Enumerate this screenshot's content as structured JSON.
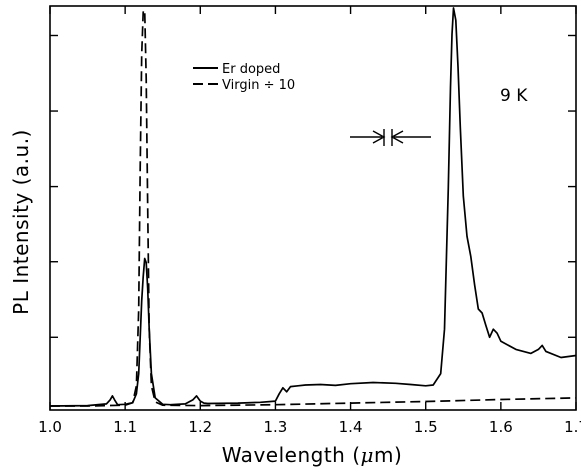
{
  "chart_data": {
    "type": "line",
    "title": "",
    "xlabel": "Wavelength (μm)",
    "xlabel_parts": {
      "main": "Wavelength (",
      "unit_greek": "μ",
      "unit_rest": "m)"
    },
    "ylabel": "PL Intensity (a.u.)",
    "xlim": [
      1.0,
      1.7
    ],
    "ylim": [
      0,
      1
    ],
    "y_tick_labels_shown": false,
    "y_ticks": [
      0.18,
      0.367,
      0.553,
      0.74,
      0.927
    ],
    "x_tick_labels": [
      "1.0",
      "1.1",
      "1.2",
      "1.3",
      "1.4",
      "1.5",
      "1.6",
      "1.7"
    ],
    "x_ticks": [
      1.0,
      1.1,
      1.2,
      1.3,
      1.4,
      1.5,
      1.6,
      1.7
    ],
    "grid": false,
    "legend_position": "top-center",
    "annotations": [
      {
        "text": "9 K",
        "x": 1.655,
        "y": 0.771
      },
      {
        "type": "resolution-arrows",
        "x": 1.45,
        "y": 0.737
      }
    ],
    "series": [
      {
        "name": "Er doped",
        "style": "solid",
        "x": [
          1.0,
          1.05,
          1.075,
          1.08,
          1.083,
          1.086,
          1.09,
          1.1,
          1.11,
          1.115,
          1.118,
          1.12,
          1.122,
          1.124,
          1.126,
          1.128,
          1.13,
          1.132,
          1.135,
          1.14,
          1.15,
          1.16,
          1.18,
          1.19,
          1.195,
          1.2,
          1.205,
          1.21,
          1.25,
          1.28,
          1.3,
          1.305,
          1.31,
          1.315,
          1.32,
          1.33,
          1.34,
          1.36,
          1.38,
          1.4,
          1.43,
          1.46,
          1.48,
          1.5,
          1.51,
          1.52,
          1.525,
          1.53,
          1.533,
          1.535,
          1.537,
          1.54,
          1.543,
          1.546,
          1.55,
          1.555,
          1.56,
          1.565,
          1.57,
          1.575,
          1.58,
          1.585,
          1.59,
          1.595,
          1.6,
          1.62,
          1.64,
          1.65,
          1.655,
          1.66,
          1.68,
          1.7
        ],
        "y": [
          0.01,
          0.011,
          0.015,
          0.025,
          0.035,
          0.025,
          0.013,
          0.014,
          0.018,
          0.04,
          0.09,
          0.18,
          0.27,
          0.33,
          0.375,
          0.365,
          0.3,
          0.2,
          0.09,
          0.03,
          0.014,
          0.013,
          0.015,
          0.025,
          0.035,
          0.022,
          0.017,
          0.016,
          0.017,
          0.019,
          0.022,
          0.04,
          0.055,
          0.045,
          0.058,
          0.06,
          0.062,
          0.063,
          0.061,
          0.065,
          0.068,
          0.066,
          0.063,
          0.06,
          0.062,
          0.09,
          0.2,
          0.55,
          0.8,
          0.93,
          0.995,
          0.965,
          0.85,
          0.7,
          0.53,
          0.43,
          0.38,
          0.31,
          0.25,
          0.24,
          0.21,
          0.18,
          0.2,
          0.19,
          0.17,
          0.15,
          0.14,
          0.15,
          0.16,
          0.145,
          0.13,
          0.135
        ]
      },
      {
        "name": "Virgin ÷ 10",
        "style": "dashed",
        "x": [
          1.0,
          1.05,
          1.1,
          1.11,
          1.115,
          1.118,
          1.12,
          1.122,
          1.124,
          1.126,
          1.128,
          1.13,
          1.132,
          1.135,
          1.14,
          1.15,
          1.2,
          1.3,
          1.4,
          1.5,
          1.6,
          1.7
        ],
        "y": [
          0.01,
          0.01,
          0.012,
          0.018,
          0.06,
          0.25,
          0.6,
          0.88,
          0.985,
          0.99,
          0.82,
          0.5,
          0.2,
          0.06,
          0.02,
          0.012,
          0.011,
          0.013,
          0.017,
          0.021,
          0.026,
          0.03
        ]
      }
    ]
  }
}
